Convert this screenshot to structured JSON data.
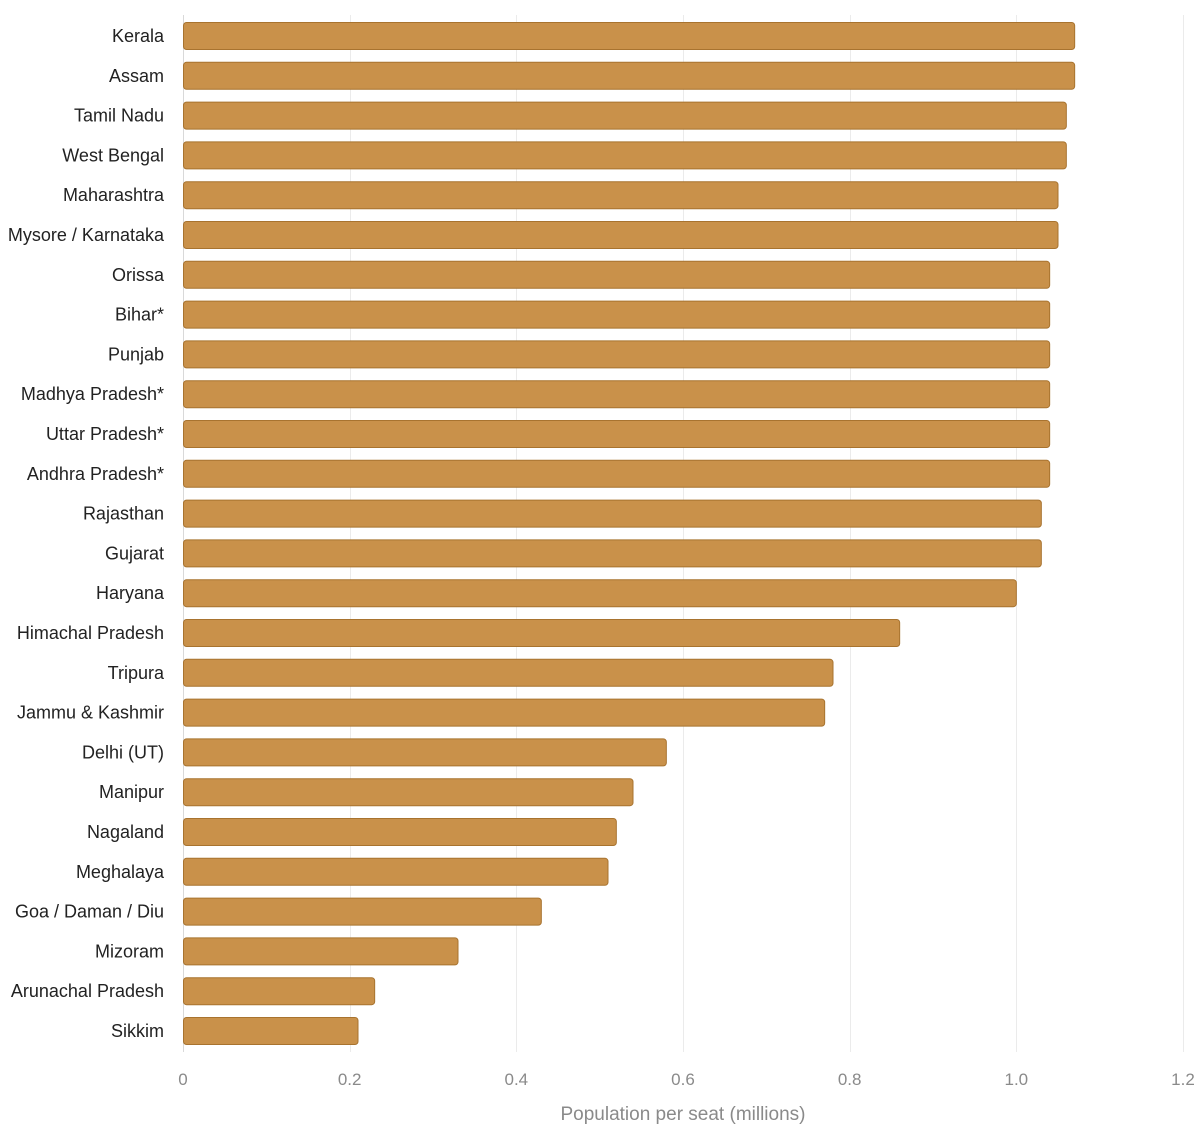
{
  "chart_data": {
    "type": "bar",
    "orientation": "horizontal",
    "categories": [
      "Kerala",
      "Assam",
      "Tamil Nadu",
      "West Bengal",
      "Maharashtra",
      "Mysore / Karnataka",
      "Orissa",
      "Bihar*",
      "Punjab",
      "Madhya Pradesh*",
      "Uttar Pradesh*",
      "Andhra Pradesh*",
      "Rajasthan",
      "Gujarat",
      "Haryana",
      "Himachal Pradesh",
      "Tripura",
      "Jammu & Kashmir",
      "Delhi (UT)",
      "Manipur",
      "Nagaland",
      "Meghalaya",
      "Goa / Daman / Diu",
      "Mizoram",
      "Arunachal Pradesh",
      "Sikkim"
    ],
    "values": [
      1.07,
      1.07,
      1.06,
      1.06,
      1.05,
      1.05,
      1.04,
      1.04,
      1.04,
      1.04,
      1.04,
      1.04,
      1.03,
      1.03,
      1.0,
      0.86,
      0.78,
      0.77,
      0.58,
      0.54,
      0.52,
      0.51,
      0.43,
      0.33,
      0.23,
      0.21
    ],
    "title": "",
    "xlabel": "Population per seat (millions)",
    "ylabel": "",
    "xlim": [
      0,
      1.2
    ],
    "xticks": [
      0,
      0.2,
      0.4,
      0.6,
      0.8,
      1.0,
      1.2
    ],
    "xtick_labels": [
      "0",
      "0.2",
      "0.4",
      "0.6",
      "0.8",
      "1.0",
      "1.2"
    ],
    "grid": "vertical",
    "legend": "none",
    "bar_color": "#c9914a",
    "bar_edge_color": "#a8732f"
  }
}
